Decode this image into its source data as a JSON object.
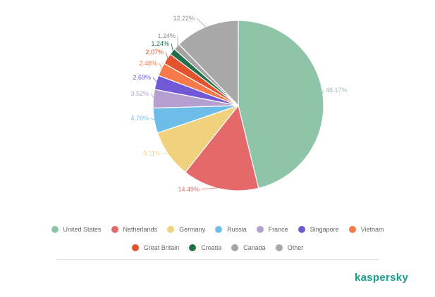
{
  "brand": {
    "name": "kaspersky",
    "color": "#1a9e8a"
  },
  "chart_data": {
    "type": "pie",
    "title": "",
    "slices": [
      {
        "name": "United States",
        "value": 46.17,
        "label": "46.17%",
        "color": "#8ec4a8"
      },
      {
        "name": "Netherlands",
        "value": 14.49,
        "label": "14.49%",
        "color": "#e3696a"
      },
      {
        "name": "Germany",
        "value": 9.11,
        "label": "9.11%",
        "color": "#f0d27e"
      },
      {
        "name": "Russia",
        "value": 4.76,
        "label": "4.76%",
        "color": "#6cbde8"
      },
      {
        "name": "France",
        "value": 3.52,
        "label": "3.52%",
        "color": "#b59fd1"
      },
      {
        "name": "Singapore",
        "value": 2.69,
        "label": "2.69%",
        "color": "#7158d6"
      },
      {
        "name": "Vietnam",
        "value": 2.48,
        "label": "2.48%",
        "color": "#f77b4a"
      },
      {
        "name": "Great Britain",
        "value": 2.07,
        "label": "2.07%",
        "color": "#e0532e"
      },
      {
        "name": "Croatia",
        "value": 1.24,
        "label": "1.24%",
        "color": "#22704a"
      },
      {
        "name": "Canada",
        "value": 1.24,
        "label": "1.24%",
        "color": "#a3a3a3"
      },
      {
        "name": "Other",
        "value": 12.22,
        "label": "12.22%",
        "color": "#a8a8a8"
      }
    ],
    "legend_position": "bottom"
  },
  "legend": {
    "rows": [
      [
        "United States",
        "Netherlands",
        "Germany",
        "Russia",
        "France",
        "Singapore",
        "Vietnam"
      ],
      [
        "Great Britain",
        "Croatia",
        "Canada",
        "Other"
      ]
    ]
  }
}
